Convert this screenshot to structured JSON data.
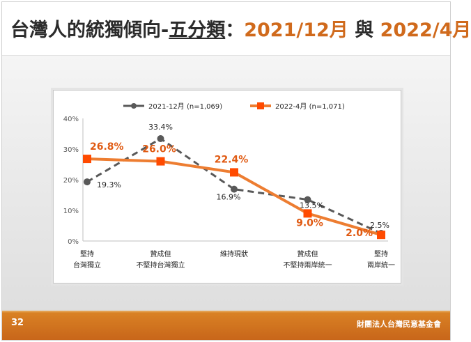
{
  "slide": {
    "title_main": "台灣人的統獨傾向-",
    "title_underlined": "五分類",
    "title_colon": "：",
    "title_date1": "2021/12月",
    "title_join": " 與 ",
    "title_date2": "2022/4月",
    "page_number": "32",
    "organization": "財團法人台灣民意基金會"
  },
  "colors": {
    "accent_orange": "#ed7d31",
    "series_2021": "#595959",
    "label_2022": "#e05a12",
    "title_highlight": "#d06a1c"
  },
  "chart_data": {
    "type": "line",
    "categories": [
      [
        "堅持",
        "台灣獨立"
      ],
      [
        "贊成但",
        "不堅持台灣獨立"
      ],
      [
        "維持現狀"
      ],
      [
        "贊成但",
        "不堅持兩岸統一"
      ],
      [
        "堅持",
        "兩岸統一"
      ]
    ],
    "ylim": [
      0,
      40
    ],
    "yticks": [
      0,
      10,
      20,
      30,
      40
    ],
    "ytick_labels": [
      "0%",
      "10%",
      "20%",
      "30%",
      "40%"
    ],
    "legend_position": "top",
    "series": [
      {
        "name": "2021-12月 (n=1,069)",
        "values": [
          19.3,
          33.4,
          16.9,
          13.5,
          2.5
        ],
        "labels": [
          "19.3%",
          "33.4%",
          "16.9%",
          "13.5%",
          "2.5%"
        ],
        "color": "#595959",
        "style": "dashed",
        "marker": "circle"
      },
      {
        "name": "2022-4月 (n=1,071)",
        "values": [
          26.8,
          26.0,
          22.4,
          9.0,
          2.0
        ],
        "labels": [
          "26.8%",
          "26.0%",
          "22.4%",
          "9.0%",
          "2.0%"
        ],
        "color": "#ed7d31",
        "style": "solid",
        "marker": "square"
      }
    ]
  }
}
